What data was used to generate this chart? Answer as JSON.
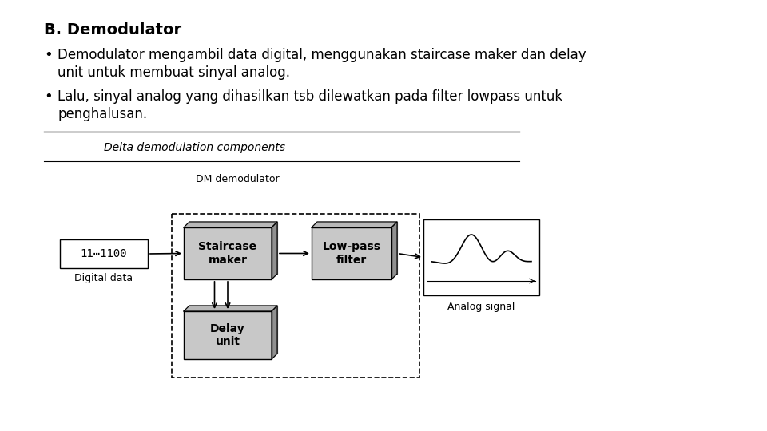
{
  "title": "B. Demodulator",
  "bullet1_line1": "Demodulator mengambil data digital, menggunakan staircase maker dan delay",
  "bullet1_line2": "unit untuk membuat sinyal analog.",
  "bullet2_line1": "Lalu, sinyal analog yang dihasilkan tsb dilewatkan pada filter lowpass untuk",
  "bullet2_line2": "penghalusan.",
  "figure_caption": "Delta demodulation components",
  "dm_label": "DM demodulator",
  "box1_label": "Staircase\nmaker",
  "box2_label": "Low-pass\nfilter",
  "box3_label": "Delay\nunit",
  "digital_data_label": "Digital data",
  "digital_data_bits": "11⋯1100",
  "analog_signal_label": "Analog signal",
  "bg_color": "#ffffff",
  "text_color": "#000000",
  "box_color": "#c8c8c8",
  "box_edge_color": "#000000",
  "line_color": "#000000"
}
